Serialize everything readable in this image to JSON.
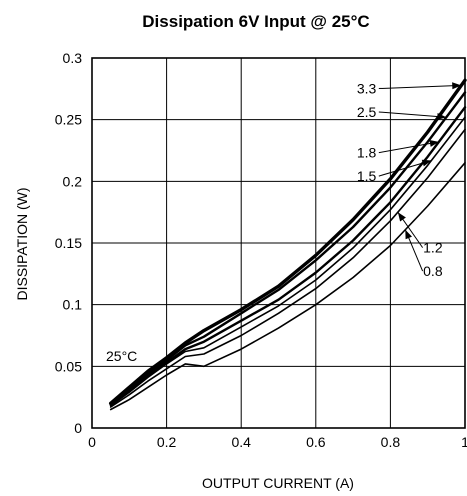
{
  "chart_data": {
    "type": "line",
    "title": "Dissipation 6V Input @ 25°C",
    "xlabel": "OUTPUT CURRENT (A)",
    "ylabel": "DISSIPATION (W)",
    "xlim": [
      0,
      1
    ],
    "ylim": [
      0,
      0.3
    ],
    "x_ticks": [
      "0",
      "0.2",
      "0.4",
      "0.6",
      "0.8",
      "1"
    ],
    "y_ticks": [
      "0",
      "0.05",
      "0.1",
      "0.15",
      "0.2",
      "0.25",
      "0.3"
    ],
    "grid": true,
    "annotation": "25°C",
    "series": [
      {
        "name": "3.3",
        "x": [
          0.05,
          0.1,
          0.15,
          0.2,
          0.25,
          0.3,
          0.4,
          0.5,
          0.6,
          0.7,
          0.8,
          0.9,
          1.0
        ],
        "y": [
          0.02,
          0.033,
          0.046,
          0.057,
          0.069,
          0.079,
          0.096,
          0.115,
          0.14,
          0.169,
          0.202,
          0.24,
          0.282
        ]
      },
      {
        "name": "2.5",
        "x": [
          0.05,
          0.1,
          0.15,
          0.2,
          0.25,
          0.3,
          0.4,
          0.5,
          0.6,
          0.7,
          0.8,
          0.9,
          1.0
        ],
        "y": [
          0.019,
          0.031,
          0.044,
          0.055,
          0.067,
          0.074,
          0.093,
          0.112,
          0.136,
          0.163,
          0.195,
          0.232,
          0.272
        ]
      },
      {
        "name": "1.8",
        "x": [
          0.05,
          0.1,
          0.15,
          0.2,
          0.25,
          0.3,
          0.4,
          0.5,
          0.6,
          0.7,
          0.8,
          0.9,
          1.0
        ],
        "y": [
          0.019,
          0.03,
          0.042,
          0.053,
          0.064,
          0.07,
          0.087,
          0.104,
          0.126,
          0.152,
          0.183,
          0.22,
          0.26
        ]
      },
      {
        "name": "1.5",
        "x": [
          0.05,
          0.1,
          0.15,
          0.2,
          0.25,
          0.3,
          0.4,
          0.5,
          0.6,
          0.7,
          0.8,
          0.9,
          1.0
        ],
        "y": [
          0.018,
          0.029,
          0.041,
          0.052,
          0.062,
          0.065,
          0.082,
          0.099,
          0.12,
          0.146,
          0.177,
          0.213,
          0.252
        ]
      },
      {
        "name": "1.2",
        "x": [
          0.05,
          0.1,
          0.15,
          0.2,
          0.25,
          0.3,
          0.4,
          0.5,
          0.6,
          0.7,
          0.8,
          0.9,
          1.0
        ],
        "y": [
          0.017,
          0.027,
          0.038,
          0.048,
          0.058,
          0.06,
          0.075,
          0.093,
          0.113,
          0.138,
          0.168,
          0.203,
          0.242
        ]
      },
      {
        "name": "0.8",
        "x": [
          0.05,
          0.1,
          0.15,
          0.2,
          0.25,
          0.3,
          0.4,
          0.5,
          0.6,
          0.7,
          0.8,
          0.9,
          1.0
        ],
        "y": [
          0.015,
          0.023,
          0.033,
          0.043,
          0.052,
          0.05,
          0.064,
          0.081,
          0.1,
          0.122,
          0.148,
          0.18,
          0.215
        ]
      }
    ]
  }
}
